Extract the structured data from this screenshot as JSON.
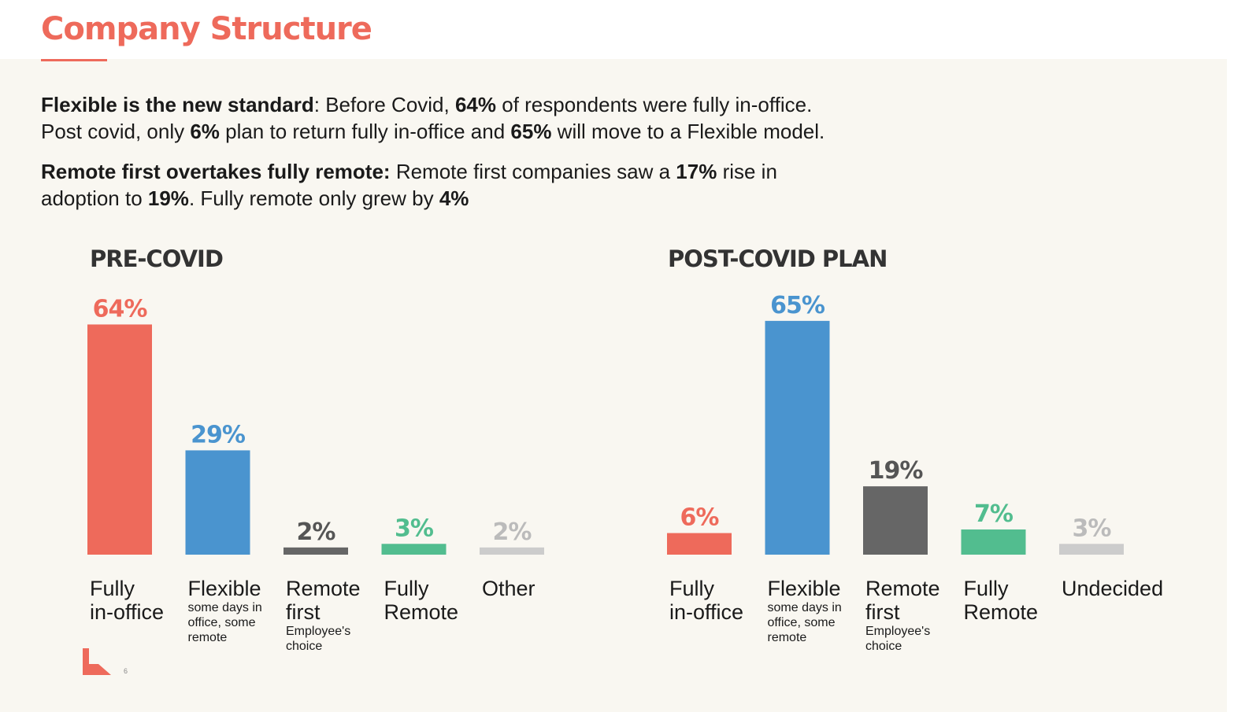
{
  "slide": {
    "title": "Company Structure",
    "page_number": "6",
    "summary": [
      {
        "segments": [
          {
            "text": "Flexible is the new standard",
            "bold": true
          },
          {
            "text": ": Before Covid, ",
            "bold": false
          },
          {
            "text": "64%",
            "bold": true
          },
          {
            "text": " of respondents were fully in-office.\nPost covid, only ",
            "bold": false
          },
          {
            "text": "6%",
            "bold": true
          },
          {
            "text": " plan to return fully in-office and ",
            "bold": false
          },
          {
            "text": "65%",
            "bold": true
          },
          {
            "text": " will move to a Flexible model.",
            "bold": false
          }
        ]
      },
      {
        "segments": [
          {
            "text": "Remote first overtakes fully remote:",
            "bold": true
          },
          {
            "text": " Remote first companies saw a ",
            "bold": false
          },
          {
            "text": "17%",
            "bold": true
          },
          {
            "text": " rise in\nadoption to ",
            "bold": false
          },
          {
            "text": "19%",
            "bold": true
          },
          {
            "text": ". Fully remote only grew by ",
            "bold": false
          },
          {
            "text": "4%",
            "bold": true
          }
        ]
      }
    ]
  },
  "colors": {
    "accent": "#ee6a5b",
    "blue": "#4a94cf",
    "dark_gray": "#666666",
    "green": "#52bd8f",
    "light_gray": "#cccccc"
  },
  "chart_data": [
    {
      "type": "bar",
      "title": "PRE-COVID",
      "ylim": [
        0,
        70
      ],
      "categories": [
        {
          "main": "Fully\nin-office",
          "sub": ""
        },
        {
          "main": "Flexible",
          "sub": "some days in\noffice, some\nremote"
        },
        {
          "main": "Remote\nfirst",
          "sub": "Employee's\nchoice"
        },
        {
          "main": "Fully\nRemote",
          "sub": ""
        },
        {
          "main": "Other",
          "sub": ""
        }
      ],
      "values": [
        64,
        29,
        2,
        3,
        2
      ],
      "labels": [
        "64%",
        "29%",
        "2%",
        "3%",
        "2%"
      ],
      "bar_colors": [
        "#ee6a5b",
        "#4a94cf",
        "#666666",
        "#52bd8f",
        "#cccccc"
      ],
      "label_colors": [
        "#ee6a5b",
        "#4a94cf",
        "#555555",
        "#52bd8f",
        "#bbbbbb"
      ]
    },
    {
      "type": "bar",
      "title": "POST-COVID PLAN",
      "ylim": [
        0,
        70
      ],
      "categories": [
        {
          "main": "Fully\nin-office",
          "sub": ""
        },
        {
          "main": "Flexible",
          "sub": "some days in\noffice, some\nremote"
        },
        {
          "main": "Remote\nfirst",
          "sub": "Employee's\nchoice"
        },
        {
          "main": "Fully\nRemote",
          "sub": ""
        },
        {
          "main": "Undecided",
          "sub": ""
        }
      ],
      "values": [
        6,
        65,
        19,
        7,
        3
      ],
      "labels": [
        "6%",
        "65%",
        "19%",
        "7%",
        "3%"
      ],
      "bar_colors": [
        "#ee6a5b",
        "#4a94cf",
        "#666666",
        "#52bd8f",
        "#cccccc"
      ],
      "label_colors": [
        "#ee6a5b",
        "#4a94cf",
        "#555555",
        "#52bd8f",
        "#bbbbbb"
      ]
    }
  ]
}
